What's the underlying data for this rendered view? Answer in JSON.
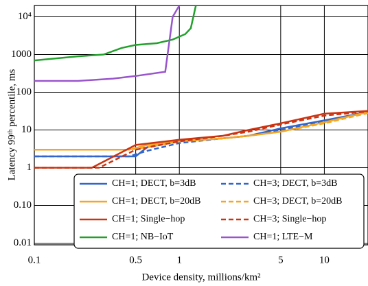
{
  "chart_data": {
    "type": "line",
    "x_label": "Device density, millions/km²",
    "y_label": "Latency 99ᵗʰ percentile, ms",
    "log_x": true,
    "log_y": true,
    "grid": true,
    "xlim": [
      0.1,
      20
    ],
    "ylim": [
      0.009,
      20000
    ],
    "xticks": [
      0.1,
      0.5,
      1,
      5,
      10
    ],
    "yticks": [
      0.01,
      {
        "value": 0.1,
        "label": "0.10"
      },
      1,
      10,
      100,
      1000,
      {
        "value": 10000,
        "label": "10⁴"
      }
    ],
    "legend": "lower right",
    "series": [
      {
        "name": "CH=1; DECT, b=3dB",
        "color": "#3366cc",
        "dash": false,
        "x": [
          0.1,
          0.5,
          0.6,
          1,
          2,
          3,
          5,
          10,
          20
        ],
        "values": [
          2,
          2,
          3.5,
          5,
          6,
          7,
          11,
          18,
          30
        ]
      },
      {
        "name": "CH=3; DECT, b=3dB",
        "color": "#3366cc",
        "dash": true,
        "x": [
          0.1,
          0.45,
          0.6,
          1,
          2,
          3,
          5,
          10,
          20
        ],
        "values": [
          2,
          2,
          2.8,
          4.5,
          6,
          7,
          10,
          17,
          30
        ]
      },
      {
        "name": "CH=1; DECT, b=20dB",
        "color": "#f5a623",
        "dash": false,
        "x": [
          0.1,
          0.45,
          0.6,
          1,
          2,
          3,
          5,
          10,
          20
        ],
        "values": [
          3,
          3,
          4,
          5,
          6,
          7,
          9,
          16,
          30
        ]
      },
      {
        "name": "CH=3; DECT, b=20dB",
        "color": "#f5a623",
        "dash": true,
        "x": [
          0.1,
          0.45,
          0.6,
          1,
          2,
          3,
          5,
          10,
          20
        ],
        "values": [
          3,
          3,
          3.5,
          5,
          6,
          7,
          9,
          15,
          28
        ]
      },
      {
        "name": "CH=1; Single−hop",
        "color": "#cc3311",
        "dash": false,
        "x": [
          0.1,
          0.25,
          0.5,
          1,
          2,
          3,
          5,
          10,
          20
        ],
        "values": [
          1,
          1,
          4,
          5.5,
          7,
          10,
          15,
          27,
          32
        ]
      },
      {
        "name": "CH=3; Single−hop",
        "color": "#cc3311",
        "dash": true,
        "x": [
          0.1,
          0.28,
          0.5,
          1,
          2,
          3,
          5,
          10,
          20
        ],
        "values": [
          1,
          1,
          3,
          5,
          7,
          9,
          14,
          24,
          31
        ]
      },
      {
        "name": "CH=1; NB−IoT",
        "color": "#22a02c",
        "dash": false,
        "x": [
          0.1,
          0.2,
          0.3,
          0.4,
          0.5,
          0.7,
          0.9,
          1.1,
          1.2,
          1.3
        ],
        "values": [
          700,
          900,
          1000,
          1500,
          1800,
          2000,
          2500,
          3500,
          5000,
          20000
        ]
      },
      {
        "name": "CH=1; LTE−M",
        "color": "#9955cc",
        "dash": false,
        "x": [
          0.1,
          0.2,
          0.35,
          0.5,
          0.8,
          0.9,
          1
        ],
        "values": [
          200,
          200,
          230,
          270,
          350,
          10000,
          20000
        ]
      }
    ]
  }
}
